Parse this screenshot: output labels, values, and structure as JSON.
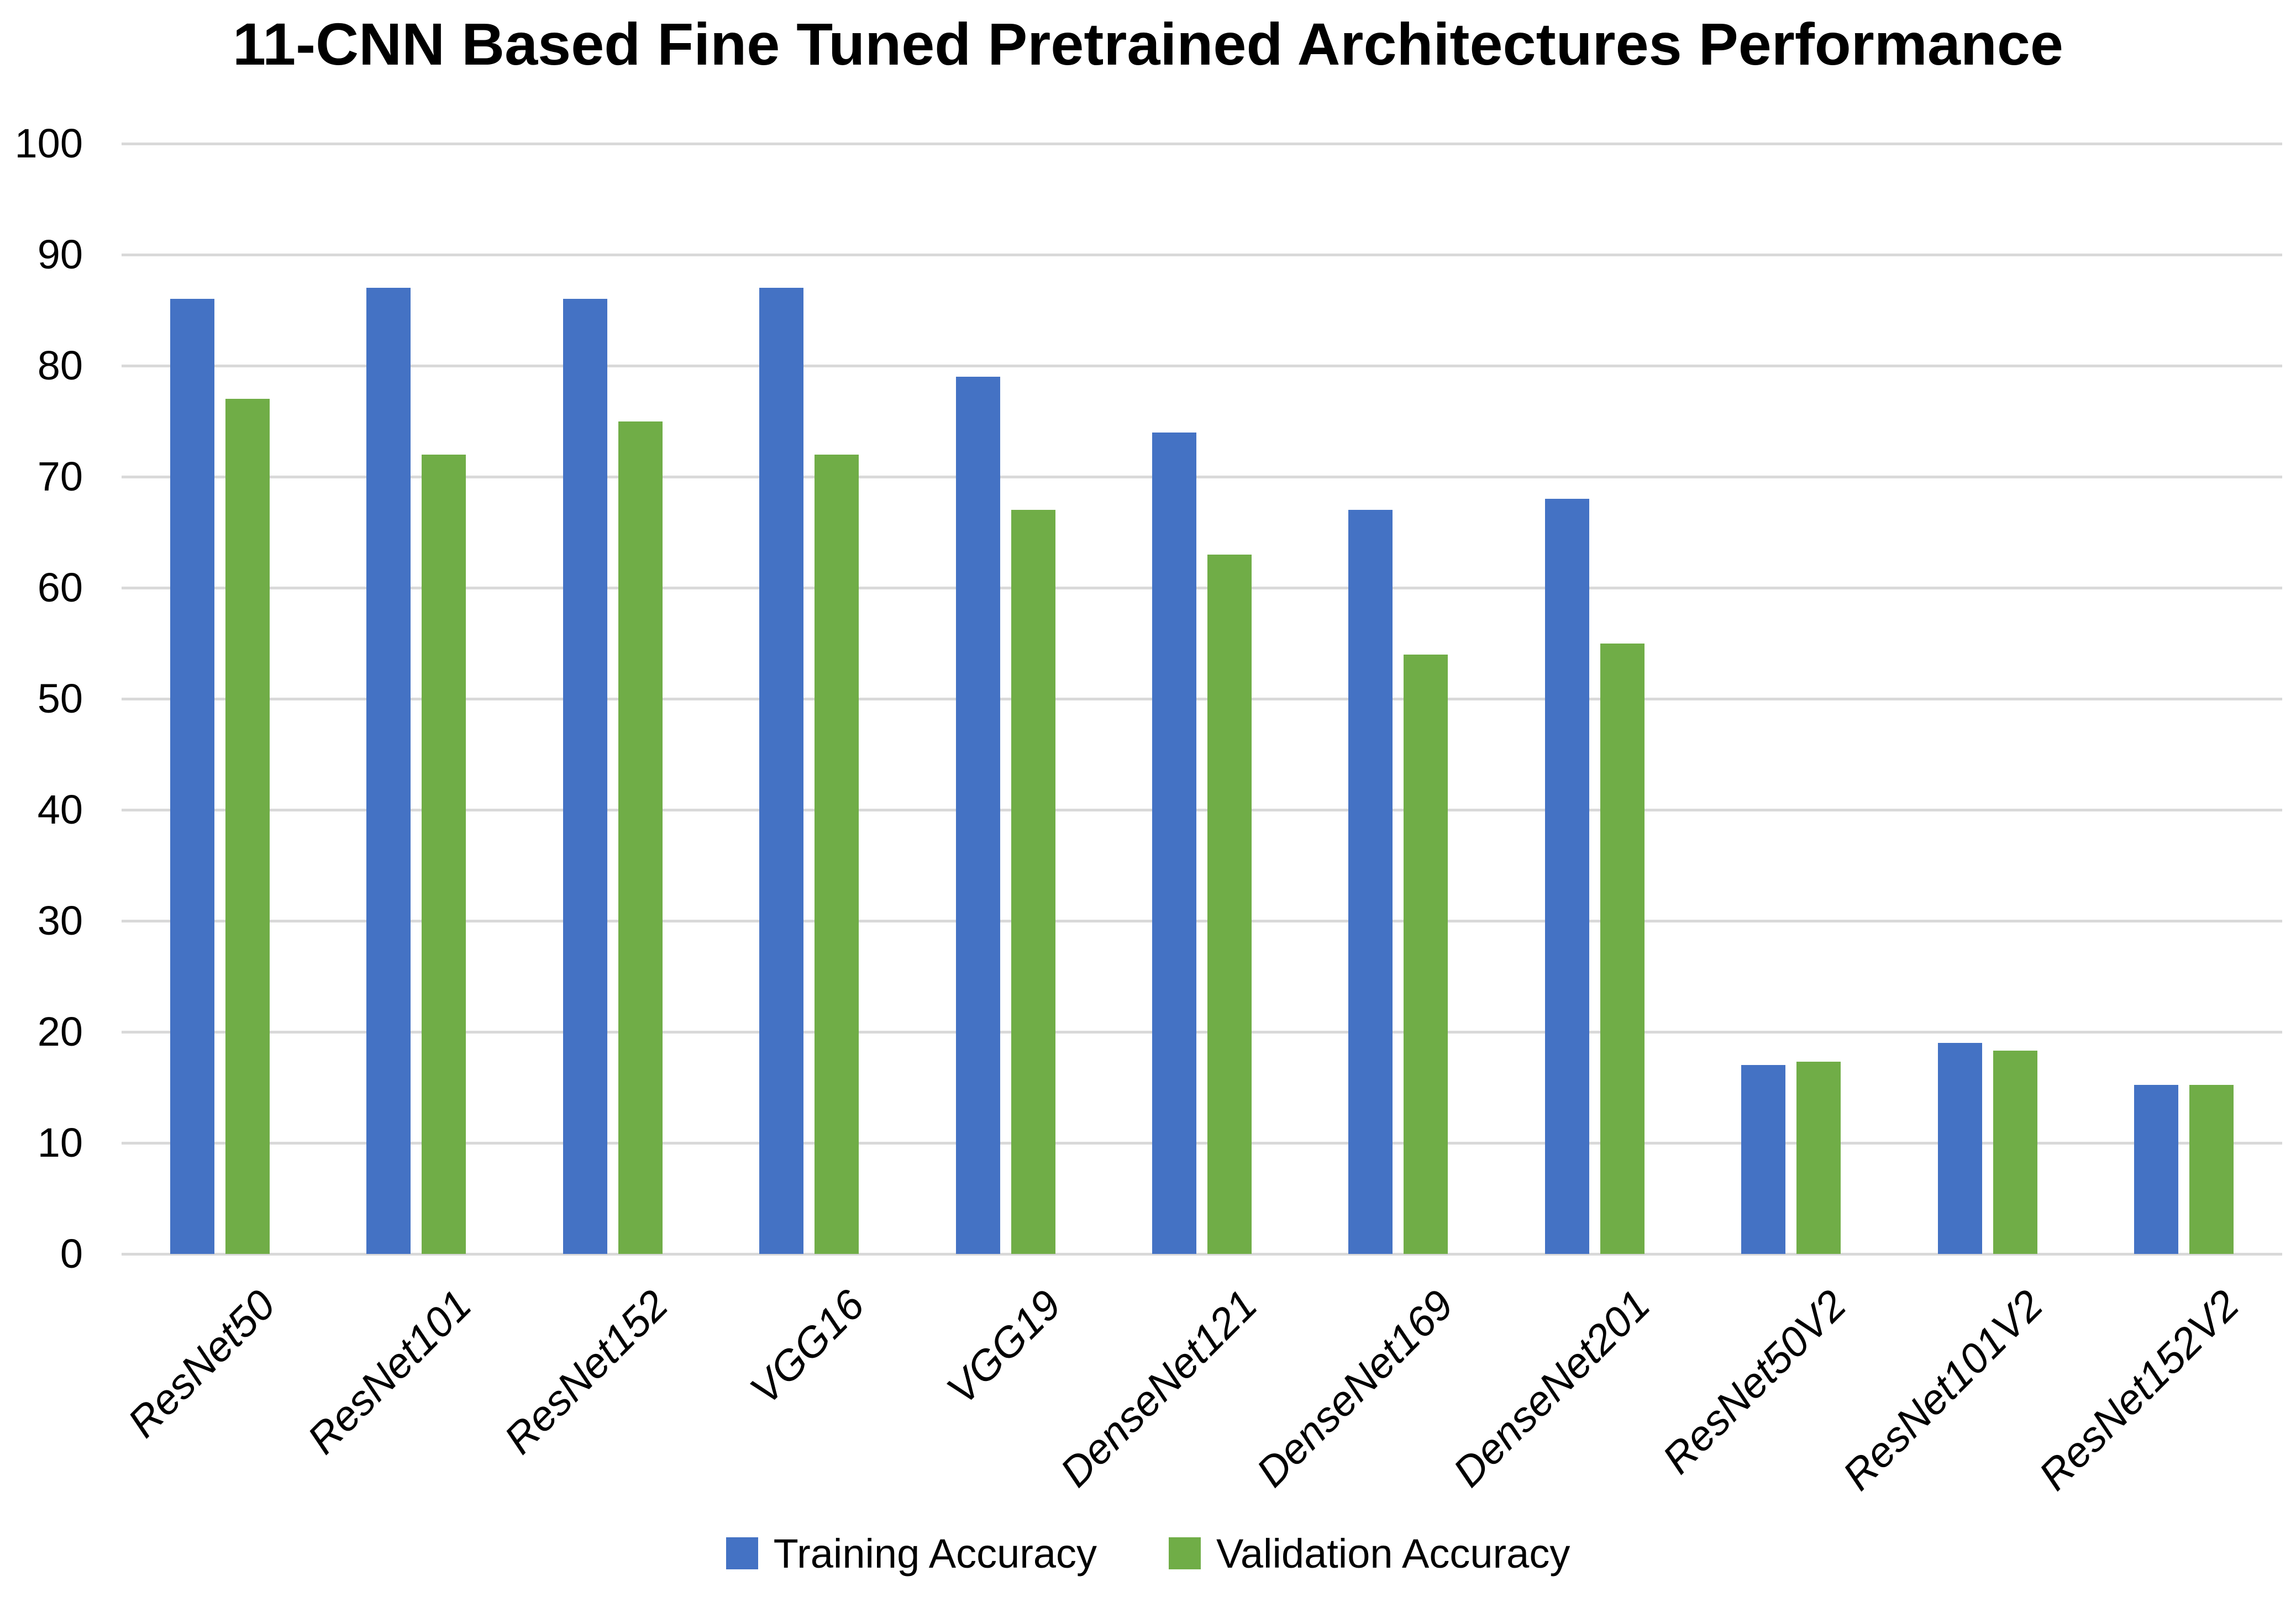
{
  "page": {
    "background": "#FFFFFF"
  },
  "chart_data": {
    "type": "bar",
    "title": "11-CNN Based Fine Tuned Pretrained Architectures Performance",
    "categories": [
      "ResNet50",
      "ResNet101",
      "ResNet152",
      "VGG16",
      "VGG19",
      "DenseNet121",
      "DenseNet169",
      "DenseNet201",
      "ResNet50V2",
      "ResNet101V2",
      "ResNet152V2"
    ],
    "series": [
      {
        "name": "Training Accuracy",
        "color": "#4472C4",
        "values": [
          86,
          87,
          86,
          87,
          79,
          74,
          67,
          68,
          17,
          19,
          15.2
        ]
      },
      {
        "name": "Validation Accuracy",
        "color": "#70AD47",
        "values": [
          77,
          72,
          75,
          72,
          67,
          63,
          54,
          55,
          17.3,
          18.3,
          15.2
        ]
      }
    ],
    "xlabel": "",
    "ylabel": "",
    "ylim": [
      0,
      100
    ],
    "yticks": [
      0,
      10,
      20,
      30,
      40,
      50,
      60,
      70,
      80,
      90,
      100
    ],
    "grid": true,
    "gridline_color": "#D9D9D9",
    "axis_text_color": "#000000",
    "legend_position": "bottom"
  }
}
